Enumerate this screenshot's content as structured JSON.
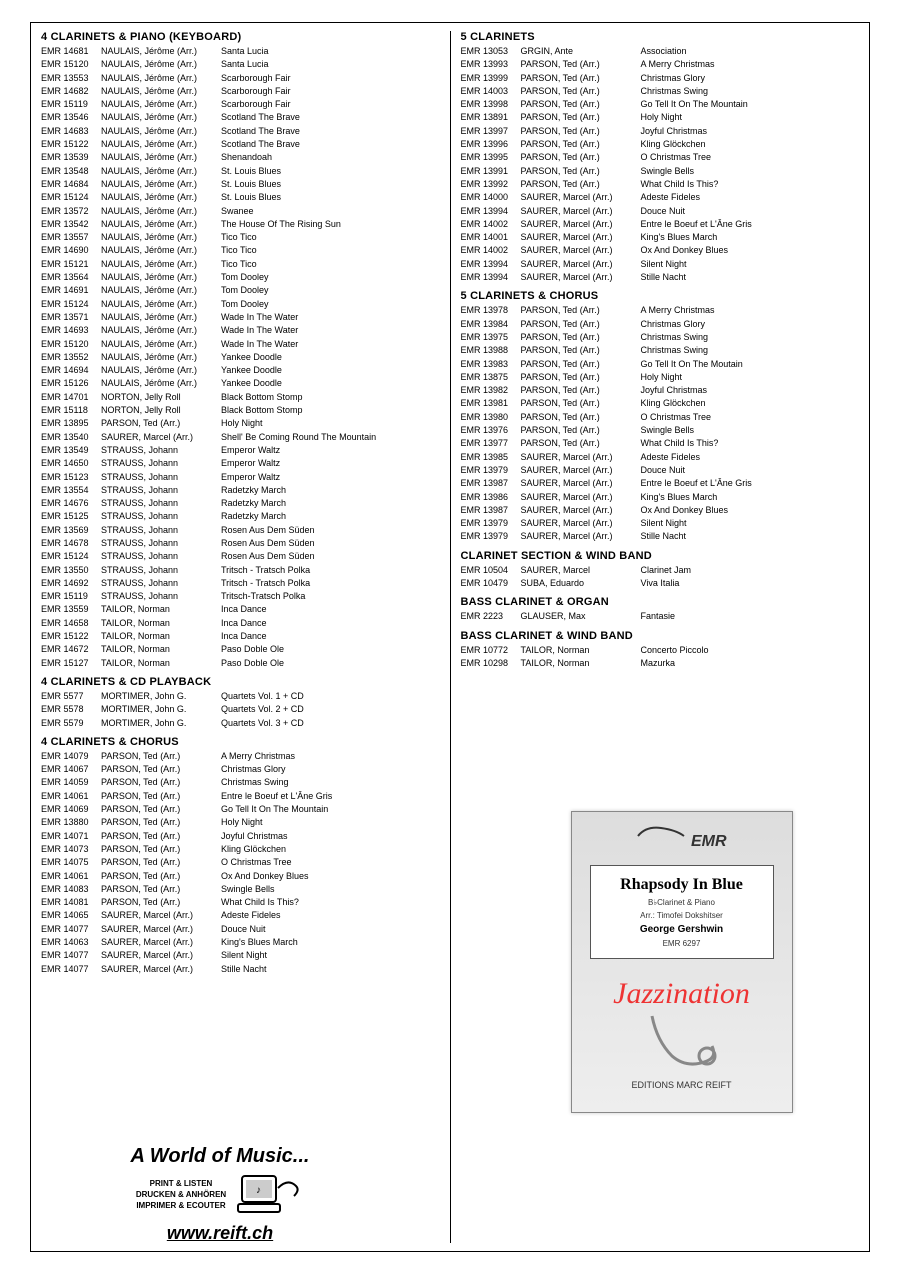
{
  "left": {
    "sections": [
      {
        "title": "4 CLARINETS & PIANO (KEYBOARD)",
        "rows": [
          [
            "EMR 14681",
            "NAULAIS, Jérôme (Arr.)",
            "Santa Lucia"
          ],
          [
            "EMR 15120",
            "NAULAIS, Jérôme (Arr.)",
            "Santa Lucia"
          ],
          [
            "EMR 13553",
            "NAULAIS, Jérôme (Arr.)",
            "Scarborough Fair"
          ],
          [
            "EMR 14682",
            "NAULAIS, Jérôme (Arr.)",
            "Scarborough Fair"
          ],
          [
            "EMR 15119",
            "NAULAIS, Jérôme (Arr.)",
            "Scarborough Fair"
          ],
          [
            "EMR 13546",
            "NAULAIS, Jérôme (Arr.)",
            "Scotland The Brave"
          ],
          [
            "EMR 14683",
            "NAULAIS, Jérôme (Arr.)",
            "Scotland The Brave"
          ],
          [
            "EMR 15122",
            "NAULAIS, Jérôme (Arr.)",
            "Scotland The Brave"
          ],
          [
            "EMR 13539",
            "NAULAIS, Jérôme (Arr.)",
            "Shenandoah"
          ],
          [
            "EMR 13548",
            "NAULAIS, Jérôme (Arr.)",
            "St. Louis Blues"
          ],
          [
            "EMR 14684",
            "NAULAIS, Jérôme (Arr.)",
            "St. Louis Blues"
          ],
          [
            "EMR 15124",
            "NAULAIS, Jérôme (Arr.)",
            "St. Louis Blues"
          ],
          [
            "EMR 13572",
            "NAULAIS, Jérôme (Arr.)",
            "Swanee"
          ],
          [
            "EMR 13542",
            "NAULAIS, Jérôme (Arr.)",
            "The House Of The Rising Sun"
          ],
          [
            "EMR 13557",
            "NAULAIS, Jérôme (Arr.)",
            "Tico Tico"
          ],
          [
            "EMR 14690",
            "NAULAIS, Jérôme (Arr.)",
            "Tico Tico"
          ],
          [
            "EMR 15121",
            "NAULAIS, Jérôme (Arr.)",
            "Tico Tico"
          ],
          [
            "EMR 13564",
            "NAULAIS, Jérôme (Arr.)",
            "Tom Dooley"
          ],
          [
            "EMR 14691",
            "NAULAIS, Jérôme (Arr.)",
            "Tom Dooley"
          ],
          [
            "EMR 15124",
            "NAULAIS, Jérôme (Arr.)",
            "Tom Dooley"
          ],
          [
            "EMR 13571",
            "NAULAIS, Jérôme (Arr.)",
            "Wade In The Water"
          ],
          [
            "EMR 14693",
            "NAULAIS, Jérôme (Arr.)",
            "Wade In The Water"
          ],
          [
            "EMR 15120",
            "NAULAIS, Jérôme (Arr.)",
            "Wade In The Water"
          ],
          [
            "EMR 13552",
            "NAULAIS, Jérôme (Arr.)",
            "Yankee Doodle"
          ],
          [
            "EMR 14694",
            "NAULAIS, Jérôme (Arr.)",
            "Yankee Doodle"
          ],
          [
            "EMR 15126",
            "NAULAIS, Jérôme (Arr.)",
            "Yankee Doodle"
          ],
          [
            "EMR 14701",
            "NORTON, Jelly Roll",
            "Black Bottom Stomp"
          ],
          [
            "EMR 15118",
            "NORTON, Jelly Roll",
            "Black Bottom Stomp"
          ],
          [
            "EMR 13895",
            "PARSON, Ted (Arr.)",
            "Holy Night"
          ],
          [
            "EMR 13540",
            "SAURER, Marcel (Arr.)",
            "Shell' Be Coming Round The Mountain"
          ],
          [
            "EMR 13549",
            "STRAUSS, Johann",
            "Emperor Waltz"
          ],
          [
            "EMR 14650",
            "STRAUSS, Johann",
            "Emperor Waltz"
          ],
          [
            "EMR 15123",
            "STRAUSS, Johann",
            "Emperor Waltz"
          ],
          [
            "EMR 13554",
            "STRAUSS, Johann",
            "Radetzky March"
          ],
          [
            "EMR 14676",
            "STRAUSS, Johann",
            "Radetzky March"
          ],
          [
            "EMR 15125",
            "STRAUSS, Johann",
            "Radetzky March"
          ],
          [
            "EMR 13569",
            "STRAUSS, Johann",
            "Rosen Aus Dem Süden"
          ],
          [
            "EMR 14678",
            "STRAUSS, Johann",
            "Rosen Aus Dem Süden"
          ],
          [
            "EMR 15124",
            "STRAUSS, Johann",
            "Rosen Aus Dem Süden"
          ],
          [
            "EMR 13550",
            "STRAUSS, Johann",
            "Tritsch - Tratsch Polka"
          ],
          [
            "EMR 14692",
            "STRAUSS, Johann",
            "Tritsch - Tratsch Polka"
          ],
          [
            "EMR 15119",
            "STRAUSS, Johann",
            "Tritsch-Tratsch Polka"
          ],
          [
            "EMR 13559",
            "TAILOR, Norman",
            "Inca Dance"
          ],
          [
            "EMR 14658",
            "TAILOR, Norman",
            "Inca Dance"
          ],
          [
            "EMR 15122",
            "TAILOR, Norman",
            "Inca Dance"
          ],
          [
            "EMR 14672",
            "TAILOR, Norman",
            "Paso Doble Ole"
          ],
          [
            "EMR 15127",
            "TAILOR, Norman",
            "Paso Doble Ole"
          ]
        ]
      },
      {
        "title": "4 CLARINETS & CD PLAYBACK",
        "rows": [
          [
            "EMR 5577",
            "MORTIMER, John G.",
            "Quartets Vol. 1 + CD"
          ],
          [
            "EMR 5578",
            "MORTIMER, John G.",
            "Quartets Vol. 2 + CD"
          ],
          [
            "EMR 5579",
            "MORTIMER, John G.",
            "Quartets Vol. 3  + CD"
          ]
        ]
      },
      {
        "title": "4 CLARINETS & CHORUS",
        "rows": [
          [
            "EMR 14079",
            "PARSON, Ted (Arr.)",
            "A Merry Christmas"
          ],
          [
            "EMR 14067",
            "PARSON, Ted (Arr.)",
            "Christmas Glory"
          ],
          [
            "EMR 14059",
            "PARSON, Ted (Arr.)",
            "Christmas Swing"
          ],
          [
            "EMR 14061",
            "PARSON, Ted (Arr.)",
            "Entre le Boeuf et L'Âne Gris"
          ],
          [
            "EMR 14069",
            "PARSON, Ted (Arr.)",
            "Go Tell It On The Mountain"
          ],
          [
            "EMR 13880",
            "PARSON, Ted (Arr.)",
            "Holy Night"
          ],
          [
            "EMR 14071",
            "PARSON, Ted (Arr.)",
            "Joyful Christmas"
          ],
          [
            "EMR 14073",
            "PARSON, Ted (Arr.)",
            "Kling Glöckchen"
          ],
          [
            "EMR 14075",
            "PARSON, Ted (Arr.)",
            "O Christmas Tree"
          ],
          [
            "EMR 14061",
            "PARSON, Ted (Arr.)",
            "Ox And Donkey Blues"
          ],
          [
            "EMR 14083",
            "PARSON, Ted (Arr.)",
            "Swingle Bells"
          ],
          [
            "EMR 14081",
            "PARSON, Ted (Arr.)",
            "What Child Is This?"
          ],
          [
            "EMR 14065",
            "SAURER, Marcel (Arr.)",
            "Adeste Fideles"
          ],
          [
            "EMR 14077",
            "SAURER, Marcel (Arr.)",
            "Douce Nuit"
          ],
          [
            "EMR 14063",
            "SAURER, Marcel (Arr.)",
            "King's Blues March"
          ],
          [
            "EMR 14077",
            "SAURER, Marcel (Arr.)",
            "Silent Night"
          ],
          [
            "EMR 14077",
            "SAURER, Marcel (Arr.)",
            "Stille Nacht"
          ]
        ]
      }
    ]
  },
  "right": {
    "sections": [
      {
        "title": "5 CLARINETS",
        "rows": [
          [
            "EMR 13053",
            "GRGIN, Ante",
            "Association"
          ],
          [
            "EMR 13993",
            "PARSON, Ted (Arr.)",
            "A Merry Christmas"
          ],
          [
            "EMR 13999",
            "PARSON, Ted (Arr.)",
            "Christmas Glory"
          ],
          [
            "EMR 14003",
            "PARSON, Ted (Arr.)",
            "Christmas Swing"
          ],
          [
            "EMR 13998",
            "PARSON, Ted (Arr.)",
            "Go Tell It On The Mountain"
          ],
          [
            "EMR 13891",
            "PARSON, Ted (Arr.)",
            "Holy Night"
          ],
          [
            "EMR 13997",
            "PARSON, Ted (Arr.)",
            "Joyful Christmas"
          ],
          [
            "EMR 13996",
            "PARSON, Ted (Arr.)",
            "Kling Glöckchen"
          ],
          [
            "EMR 13995",
            "PARSON, Ted (Arr.)",
            "O Christmas Tree"
          ],
          [
            "EMR 13991",
            "PARSON, Ted (Arr.)",
            "Swingle Bells"
          ],
          [
            "EMR 13992",
            "PARSON, Ted (Arr.)",
            "What Child Is This?"
          ],
          [
            "EMR 14000",
            "SAURER, Marcel (Arr.)",
            "Adeste Fideles"
          ],
          [
            "EMR 13994",
            "SAURER, Marcel (Arr.)",
            "Douce Nuit"
          ],
          [
            "EMR 14002",
            "SAURER, Marcel (Arr.)",
            "Entre le Boeuf et L'Âne Gris"
          ],
          [
            "EMR 14001",
            "SAURER, Marcel (Arr.)",
            "King's Blues March"
          ],
          [
            "EMR 14002",
            "SAURER, Marcel (Arr.)",
            "Ox And Donkey Blues"
          ],
          [
            "EMR 13994",
            "SAURER, Marcel (Arr.)",
            "Silent Night"
          ],
          [
            "EMR 13994",
            "SAURER, Marcel (Arr.)",
            "Stille Nacht"
          ]
        ]
      },
      {
        "title": "5 CLARINETS & CHORUS",
        "rows": [
          [
            "EMR 13978",
            "PARSON, Ted (Arr.)",
            "A Merry Christmas"
          ],
          [
            "EMR 13984",
            "PARSON, Ted (Arr.)",
            "Christmas Glory"
          ],
          [
            "EMR 13975",
            "PARSON, Ted (Arr.)",
            "Christmas Swing"
          ],
          [
            "EMR 13988",
            "PARSON, Ted (Arr.)",
            "Christmas Swing"
          ],
          [
            "EMR 13983",
            "PARSON, Ted (Arr.)",
            "Go Tell It On The Moutain"
          ],
          [
            "EMR 13875",
            "PARSON, Ted (Arr.)",
            "Holy Night"
          ],
          [
            "EMR 13982",
            "PARSON, Ted (Arr.)",
            "Joyful Christmas"
          ],
          [
            "EMR 13981",
            "PARSON, Ted (Arr.)",
            "Kling Glöckchen"
          ],
          [
            "EMR 13980",
            "PARSON, Ted (Arr.)",
            "O Christmas Tree"
          ],
          [
            "EMR 13976",
            "PARSON, Ted (Arr.)",
            "Swingle Bells"
          ],
          [
            "EMR 13977",
            "PARSON, Ted (Arr.)",
            "What Child Is This?"
          ],
          [
            "EMR 13985",
            "SAURER, Marcel (Arr.)",
            "Adeste Fideles"
          ],
          [
            "EMR 13979",
            "SAURER, Marcel (Arr.)",
            "Douce Nuit"
          ],
          [
            "EMR 13987",
            "SAURER, Marcel (Arr.)",
            "Entre le Boeuf et L'Âne Gris"
          ],
          [
            "EMR 13986",
            "SAURER, Marcel (Arr.)",
            "King's Blues March"
          ],
          [
            "EMR 13987",
            "SAURER, Marcel (Arr.)",
            "Ox And Donkey Blues"
          ],
          [
            "EMR 13979",
            "SAURER, Marcel (Arr.)",
            "Silent Night"
          ],
          [
            "EMR 13979",
            "SAURER, Marcel (Arr.)",
            "Stille Nacht"
          ]
        ]
      },
      {
        "title": "CLARINET SECTION & WIND BAND",
        "rows": [
          [
            "EMR 10504",
            "SAURER, Marcel",
            "Clarinet Jam"
          ],
          [
            "EMR 10479",
            "SUBA, Eduardo",
            "Viva Italia"
          ]
        ]
      },
      {
        "title": "BASS CLARINET & ORGAN",
        "rows": [
          [
            "EMR 2223",
            "GLAUSER, Max",
            "Fantasie"
          ]
        ]
      },
      {
        "title": "BASS CLARINET & WIND BAND",
        "rows": [
          [
            "EMR 10772",
            "TAILOR, Norman",
            "Concerto Piccolo"
          ],
          [
            "EMR 10298",
            "TAILOR, Norman",
            "Mazurka"
          ]
        ]
      }
    ]
  },
  "promo_left": {
    "headline": "A World of Music...",
    "line1": "PRINT & LISTEN",
    "line2": "DRUCKEN & ANHÖREN",
    "line3": "IMPRIMER & ECOUTER",
    "url": "www.reift.ch"
  },
  "cover": {
    "brand": "EMR",
    "title": "Rhapsody In Blue",
    "sub1": "B♭Clarinet & Piano",
    "sub2": "Arr.: Timofei Dokshitser",
    "composer": "George Gershwin",
    "code": "EMR 6297",
    "series": "Jazzination",
    "publisher": "EDITIONS MARC REIFT"
  }
}
